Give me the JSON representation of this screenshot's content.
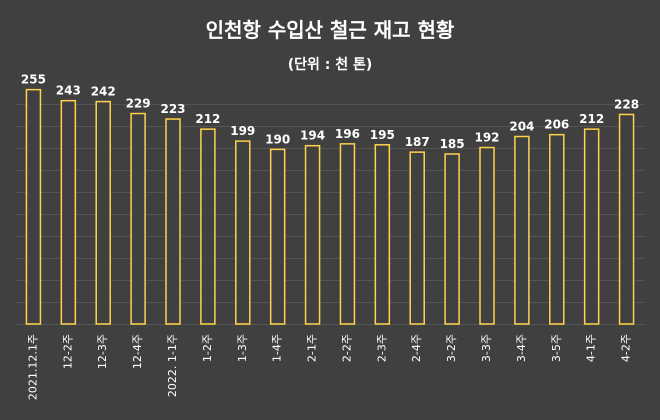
{
  "chart_data": {
    "type": "bar",
    "title": "인천항 수입산 철근 재고 현황",
    "subtitle": "(단위 : 천 톤)",
    "categories": [
      "2021.12.1주",
      "12-2주",
      "12-3주",
      "12-4주",
      "2022. 1-1주",
      "1-2주",
      "1-3주",
      "1-4주",
      "2-1주",
      "2-2주",
      "2-3주",
      "2-4주",
      "3-2주",
      "3-3주",
      "3-4주",
      "3-5주",
      "4-1주",
      "4-2주"
    ],
    "values": [
      255,
      243,
      242,
      229,
      223,
      212,
      199,
      190,
      194,
      196,
      195,
      187,
      185,
      192,
      204,
      206,
      212,
      228
    ],
    "ylim": [
      0,
      260
    ],
    "xlabel": "",
    "ylabel": "",
    "grid": true,
    "colors": {
      "background": "#404040",
      "bar_edge": "#ffd24a",
      "bar_fill": "#404040",
      "grid": "#555555",
      "text": "#ffffff"
    }
  }
}
